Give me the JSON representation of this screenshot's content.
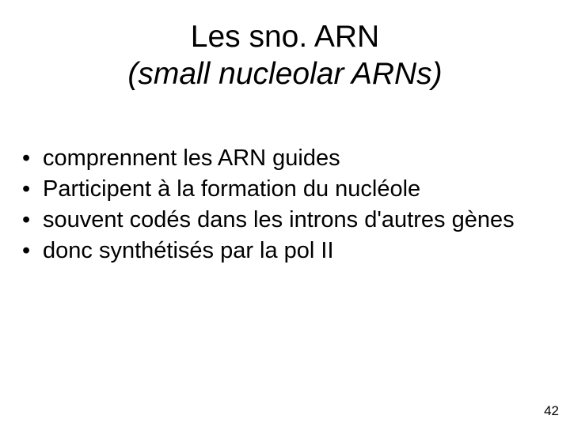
{
  "slide": {
    "title_line1": "Les sno. ARN",
    "title_line2": "(small nucleolar ARNs)",
    "bullets": [
      "comprennent les ARN guides",
      "Participent à la formation du nucléole",
      "souvent codés dans les introns d'autres gènes",
      "donc synthétisés par la pol II"
    ],
    "page_number": "42"
  },
  "style": {
    "background_color": "#ffffff",
    "text_color": "#000000",
    "title_fontsize": 39,
    "body_fontsize": 29,
    "pagenum_fontsize": 17,
    "font_family": "Verdana, Geneva, sans-serif"
  }
}
